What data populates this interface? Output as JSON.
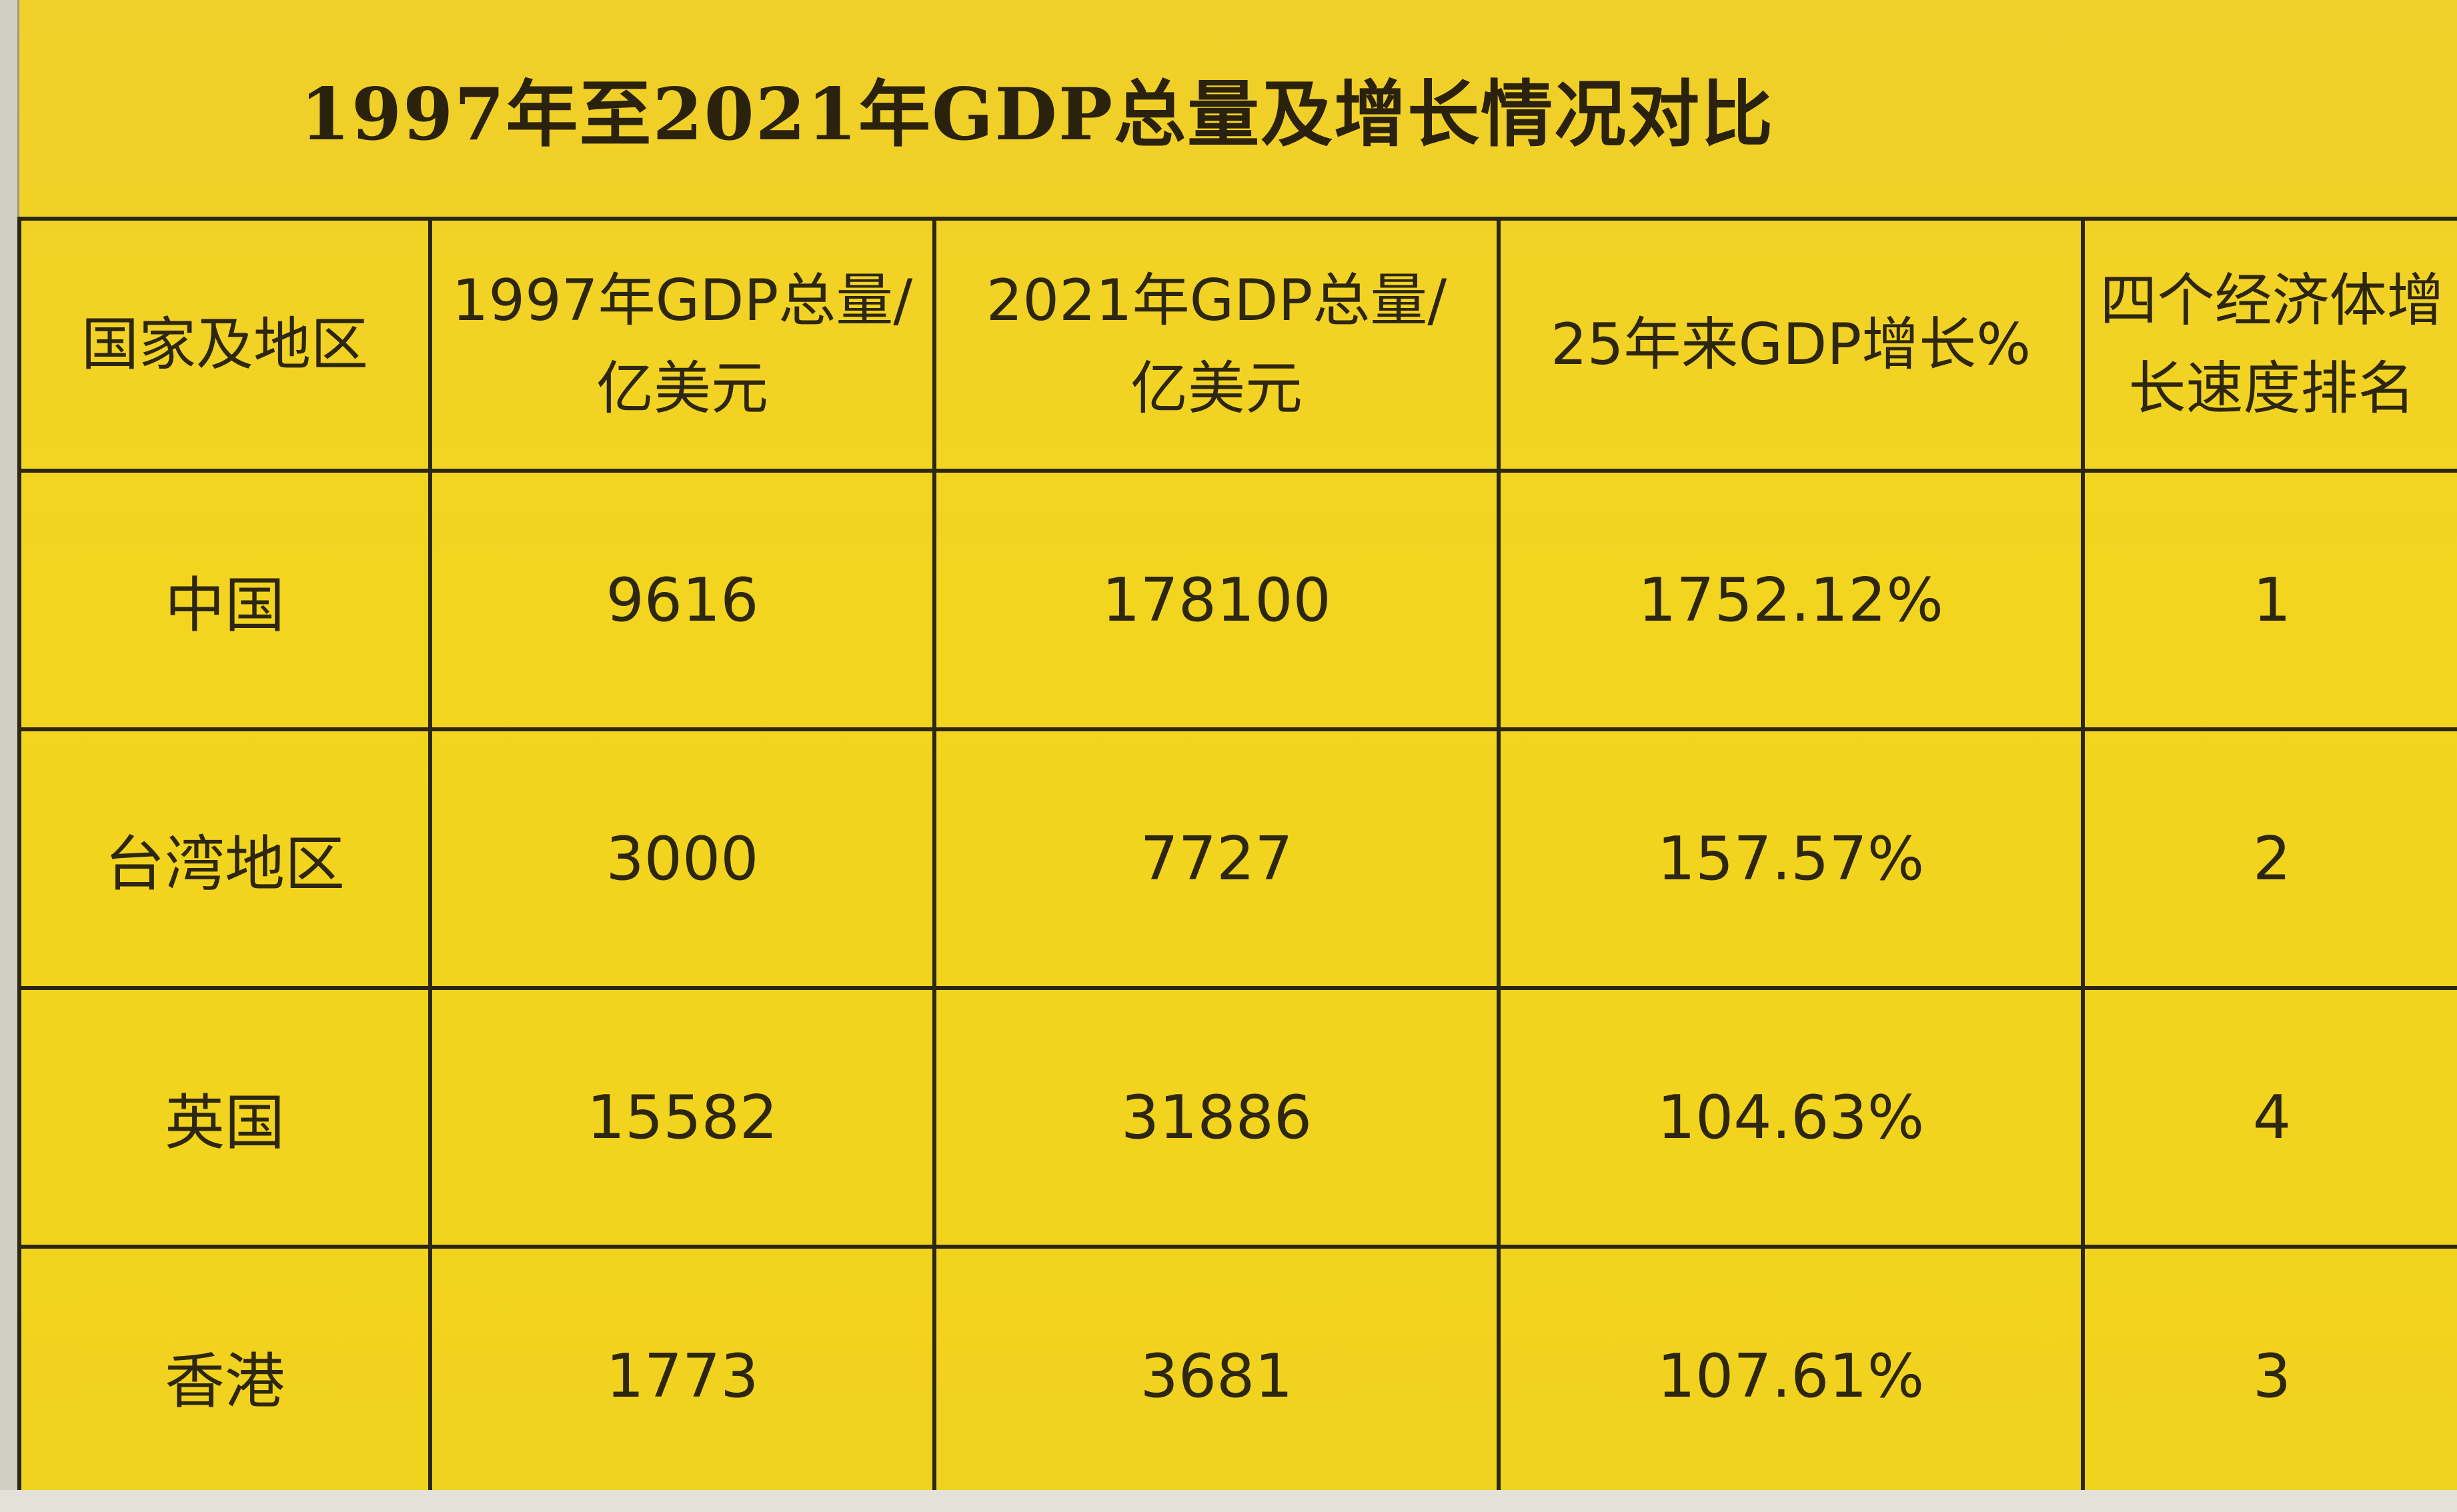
{
  "title": "1997年至2021年GDP总量及增长情况对比",
  "headers": [
    {
      "line1": "国家及地区",
      "line2": ""
    },
    {
      "line1": "1997年GDP总量/",
      "line2": "亿美元"
    },
    {
      "line1": "2021年GDP总量/",
      "line2": "亿美元"
    },
    {
      "line1": "25年来GDP增长%",
      "line2": ""
    },
    {
      "line1": "四个经济体增",
      "line2": "长速度排名"
    }
  ],
  "rows": [
    {
      "region": "中国",
      "gdp_1997": "9616",
      "gdp_2021": "178100",
      "growth": "1752.12%",
      "rank": "1"
    },
    {
      "region": "台湾地区",
      "gdp_1997": "3000",
      "gdp_2021": "7727",
      "growth": "157.57%",
      "rank": "2"
    },
    {
      "region": "英国",
      "gdp_1997": "15582",
      "gdp_2021": "31886",
      "growth": "104.63%",
      "rank": "4"
    },
    {
      "region": "香港",
      "gdp_1997": "1773",
      "gdp_2021": "3681",
      "growth": "107.61%",
      "rank": "3"
    }
  ]
}
